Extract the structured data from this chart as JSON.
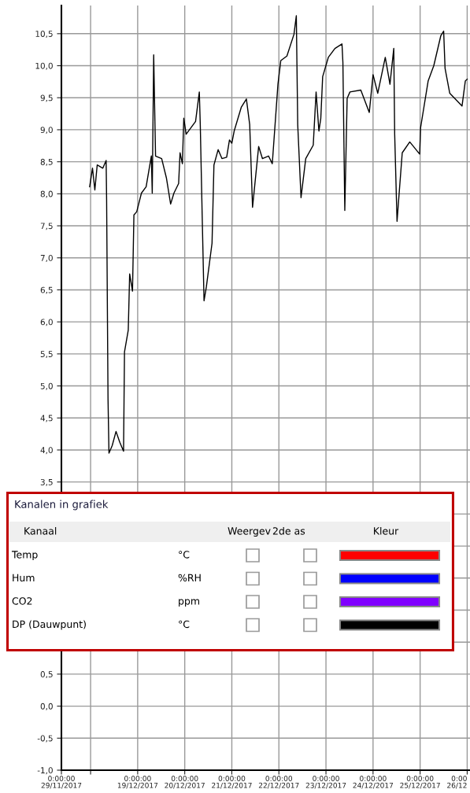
{
  "chart_data": [
    {
      "type": "line",
      "x": [
        "2017-12-17T23:31",
        "2017-12-18T00:58",
        "2017-12-18T02:10",
        "2017-12-18T03:22",
        "2017-12-18T06:14",
        "2017-12-18T07:55",
        "2017-12-18T08:10",
        "2017-12-18T08:53",
        "2017-12-18T09:22",
        "2017-12-18T11:02",
        "2017-12-18T12:58",
        "2017-12-18T14:53",
        "2017-12-18T16:48",
        "2017-12-18T17:17",
        "2017-12-18T19:12",
        "2017-12-18T19:55",
        "2017-12-18T21:22",
        "2017-12-18T22:05",
        "2017-12-18T23:31",
        "2017-12-19T01:55",
        "2017-12-19T04:19",
        "2017-12-19T06:58",
        "2017-12-19T07:26",
        "2017-12-19T08:10",
        "2017-12-19T09:07",
        "2017-12-19T12:14",
        "2017-12-19T14:38",
        "2017-12-19T16:48",
        "2017-12-19T18:29",
        "2017-12-19T20:53",
        "2017-12-19T21:36",
        "2017-12-19T22:48",
        "2017-12-19T23:31",
        "2017-12-20T00:43",
        "2017-12-20T05:31",
        "2017-12-20T07:26",
        "2017-12-20T07:55",
        "2017-12-20T08:53",
        "2017-12-20T09:50",
        "2017-12-20T11:02",
        "2017-12-20T13:55",
        "2017-12-20T14:53",
        "2017-12-20T17:02",
        "2017-12-20T18:58",
        "2017-12-20T21:22",
        "2017-12-20T22:48",
        "2017-12-21T00:00",
        "2017-12-21T01:12",
        "2017-12-21T04:48",
        "2017-12-21T07:26",
        "2017-12-21T09:07",
        "2017-12-21T10:34",
        "2017-12-21T13:41",
        "2017-12-21T15:36",
        "2017-12-21T18:43",
        "2017-12-21T20:38",
        "2017-12-21T23:31",
        "2017-12-22T00:58",
        "2017-12-22T04:05",
        "2017-12-22T07:41",
        "2017-12-22T08:53",
        "2017-12-22T09:36",
        "2017-12-22T11:17",
        "2017-12-22T13:41",
        "2017-12-22T17:31",
        "2017-12-22T18:58",
        "2017-12-22T20:24",
        "2017-12-22T21:22",
        "2017-12-22T22:19",
        "2017-12-23T01:12",
        "2017-12-23T04:34",
        "2017-12-23T08:10",
        "2017-12-23T08:38",
        "2017-12-23T09:36",
        "2017-12-23T10:48",
        "2017-12-23T12:14",
        "2017-12-23T17:46",
        "2017-12-23T22:05",
        "2017-12-24T00:00",
        "2017-12-24T02:24",
        "2017-12-24T06:14",
        "2017-12-24T08:38",
        "2017-12-24T10:34",
        "2017-12-24T11:02",
        "2017-12-24T12:14",
        "2017-12-24T14:53",
        "2017-12-24T18:43",
        "2017-12-24T23:46",
        "2017-12-25T00:14",
        "2017-12-25T04:05",
        "2017-12-25T06:58",
        "2017-12-25T10:34",
        "2017-12-25T12:00",
        "2017-12-25T12:43",
        "2017-12-25T15:07",
        "2017-12-25T21:22",
        "2017-12-25T23:02",
        "2017-12-26T00:00"
      ],
      "series": [
        {
          "color": "#000000",
          "values": [
            8.11,
            8.4,
            8.06,
            8.45,
            8.4,
            8.52,
            7.91,
            4.8,
            3.95,
            4.07,
            4.29,
            4.12,
            3.98,
            5.53,
            5.87,
            6.75,
            6.48,
            7.67,
            7.72,
            8.01,
            8.11,
            8.59,
            8.01,
            10.17,
            8.59,
            8.55,
            8.25,
            7.84,
            8.01,
            8.16,
            8.64,
            8.47,
            9.18,
            8.93,
            9.13,
            9.59,
            9.08,
            7.67,
            6.33,
            6.55,
            7.23,
            8.45,
            8.69,
            8.55,
            8.57,
            8.84,
            8.79,
            8.98,
            9.35,
            9.48,
            9.08,
            7.79,
            8.74,
            8.55,
            8.59,
            8.47,
            9.71,
            10.08,
            10.15,
            10.49,
            10.78,
            9.08,
            7.94,
            8.55,
            8.76,
            9.59,
            8.98,
            9.18,
            9.83,
            10.13,
            10.27,
            10.34,
            10.05,
            7.74,
            9.49,
            9.59,
            9.62,
            9.27,
            9.86,
            9.57,
            10.13,
            9.71,
            10.27,
            8.93,
            7.57,
            8.64,
            8.81,
            8.62,
            9.03,
            9.76,
            10.0,
            10.47,
            10.54,
            9.96,
            9.57,
            9.37,
            9.76,
            9.79
          ]
        }
      ],
      "xlim": [
        "2017-12-17T09:07",
        "2017-12-26T01:26"
      ],
      "xticks": [
        {
          "value": "2017-12-17T09:07",
          "label": "0:00:00\n29/11/2017"
        },
        {
          "value": "2017-12-18",
          "label": null
        },
        {
          "value": "2017-12-19",
          "label": "0:00:00\n19/12/2017"
        },
        {
          "value": "2017-12-20",
          "label": "0:00:00\n20/12/2017"
        },
        {
          "value": "2017-12-21",
          "label": "0:00:00\n21/12/2017"
        },
        {
          "value": "2017-12-22",
          "label": "0:00:00\n22/12/2017"
        },
        {
          "value": "2017-12-23",
          "label": "0:00:00\n23/12/2017"
        },
        {
          "value": "2017-12-24",
          "label": "0:00:00\n24/12/2017"
        },
        {
          "value": "2017-12-25",
          "label": "0:00:00\n25/12/2017"
        },
        {
          "value": "2017-12-26",
          "label": "0:00\n26/12"
        }
      ],
      "ylim": [
        -1.0,
        10.94
      ],
      "yticks": [
        {
          "value": -1.0,
          "label": "-1,0"
        },
        {
          "value": -0.5,
          "label": "-0,5"
        },
        {
          "value": 0.0,
          "label": "0,0"
        },
        {
          "value": 0.5,
          "label": "0,5"
        },
        {
          "value": 1.0,
          "label": null
        },
        {
          "value": 1.5,
          "label": null
        },
        {
          "value": 2.0,
          "label": null
        },
        {
          "value": 2.5,
          "label": null
        },
        {
          "value": 3.0,
          "label": null
        },
        {
          "value": 3.5,
          "label": "3,5"
        },
        {
          "value": 4.0,
          "label": "4,0"
        },
        {
          "value": 4.5,
          "label": "4,5"
        },
        {
          "value": 5.0,
          "label": "5,0"
        },
        {
          "value": 5.5,
          "label": "5,5"
        },
        {
          "value": 6.0,
          "label": "6,0"
        },
        {
          "value": 6.5,
          "label": "6,5"
        },
        {
          "value": 7.0,
          "label": "7,0"
        },
        {
          "value": 7.5,
          "label": "7,5"
        },
        {
          "value": 8.0,
          "label": "8,0"
        },
        {
          "value": 8.5,
          "label": "8,5"
        },
        {
          "value": 9.0,
          "label": "9,0"
        },
        {
          "value": 9.5,
          "label": "9,5"
        },
        {
          "value": 10.0,
          "label": "10,0"
        },
        {
          "value": 10.5,
          "label": "10,5"
        }
      ],
      "grid": true,
      "marker": "none",
      "line_style": "solid"
    },
    {
      "type": "other",
      "title": "Kanalen in grafiek",
      "categories": [
        "Temp",
        "Hum",
        "CO2",
        "DP (Dauwpunt)"
      ],
      "colors": [
        "#ff0000",
        "#0000ff",
        "#8000ff",
        "#000000"
      ],
      "annotations": [
        "Kanaal",
        "Weergev",
        "2de as",
        "Kleur",
        "°C",
        "%RH",
        "ppm",
        "°C"
      ]
    }
  ]
}
